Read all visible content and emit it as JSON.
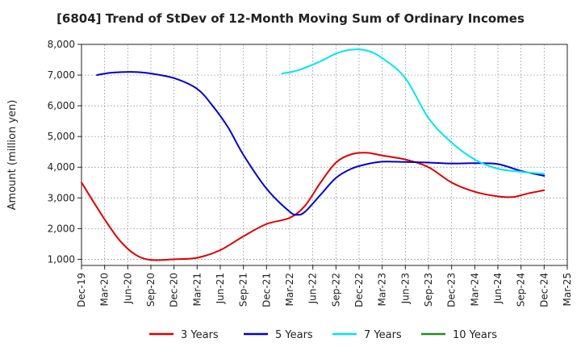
{
  "chart_data": {
    "type": "line",
    "title": "[6804]  Trend of StDev of 12-Month Moving Sum of Ordinary Incomes",
    "xlabel": "",
    "ylabel": "Amount (million yen)",
    "ylim": [
      800,
      8000
    ],
    "yticks": [
      1000,
      2000,
      3000,
      4000,
      5000,
      6000,
      7000,
      8000
    ],
    "ytick_labels": [
      "1,000",
      "2,000",
      "3,000",
      "4,000",
      "5,000",
      "6,000",
      "7,000",
      "8,000"
    ],
    "x_start": "Dec-19",
    "x_months_total": 63,
    "xtick_labels": [
      "Dec-19",
      "Mar-20",
      "Jun-20",
      "Sep-20",
      "Dec-20",
      "Mar-21",
      "Jun-21",
      "Sep-21",
      "Dec-21",
      "Mar-22",
      "Jun-22",
      "Sep-22",
      "Dec-22",
      "Mar-23",
      "Jun-23",
      "Sep-23",
      "Dec-23",
      "Mar-24",
      "Jun-24",
      "Sep-24",
      "Dec-24",
      "Mar-25"
    ],
    "grid": true,
    "legend_position": "bottom",
    "series": [
      {
        "name": "3 Years",
        "color": "#dd0000",
        "points": [
          [
            "Dec-19",
            3500
          ],
          [
            "Mar-20",
            2300
          ],
          [
            "May-20",
            1600
          ],
          [
            "Jul-20",
            1150
          ],
          [
            "Sep-20",
            980
          ],
          [
            "Dec-20",
            1000
          ],
          [
            "Mar-21",
            1050
          ],
          [
            "Jun-21",
            1300
          ],
          [
            "Sep-21",
            1750
          ],
          [
            "Dec-21",
            2150
          ],
          [
            "Mar-22",
            2350
          ],
          [
            "May-22",
            2750
          ],
          [
            "Jul-22",
            3500
          ],
          [
            "Sep-22",
            4150
          ],
          [
            "Nov-22",
            4420
          ],
          [
            "Jan-23",
            4470
          ],
          [
            "Mar-23",
            4380
          ],
          [
            "Jun-23",
            4250
          ],
          [
            "Sep-23",
            4000
          ],
          [
            "Dec-23",
            3500
          ],
          [
            "Mar-24",
            3200
          ],
          [
            "Jun-24",
            3050
          ],
          [
            "Aug-24",
            3030
          ],
          [
            "Oct-24",
            3150
          ],
          [
            "Dec-24",
            3250
          ]
        ]
      },
      {
        "name": "5 Years",
        "color": "#0000cc",
        "points": [
          [
            "Feb-20",
            7000
          ],
          [
            "Apr-20",
            7080
          ],
          [
            "Jul-20",
            7100
          ],
          [
            "Sep-20",
            7050
          ],
          [
            "Dec-20",
            6900
          ],
          [
            "Mar-21",
            6550
          ],
          [
            "May-21",
            6000
          ],
          [
            "Jul-21",
            5300
          ],
          [
            "Sep-21",
            4400
          ],
          [
            "Dec-21",
            3300
          ],
          [
            "Mar-22",
            2550
          ],
          [
            "Apr-22",
            2450
          ],
          [
            "May-22",
            2550
          ],
          [
            "Jul-22",
            3100
          ],
          [
            "Sep-22",
            3650
          ],
          [
            "Nov-22",
            3950
          ],
          [
            "Jan-23",
            4100
          ],
          [
            "Mar-23",
            4180
          ],
          [
            "Jun-23",
            4170
          ],
          [
            "Sep-23",
            4150
          ],
          [
            "Dec-23",
            4120
          ],
          [
            "Mar-24",
            4130
          ],
          [
            "Jun-24",
            4100
          ],
          [
            "Sep-24",
            3880
          ],
          [
            "Dec-24",
            3720
          ]
        ]
      },
      {
        "name": "7 Years",
        "color": "#00e5ee",
        "points": [
          [
            "Feb-22",
            7050
          ],
          [
            "Apr-22",
            7150
          ],
          [
            "Jul-22",
            7450
          ],
          [
            "Sep-22",
            7700
          ],
          [
            "Nov-22",
            7830
          ],
          [
            "Jan-23",
            7800
          ],
          [
            "Mar-23",
            7550
          ],
          [
            "Jun-23",
            6900
          ],
          [
            "Sep-23",
            5600
          ],
          [
            "Dec-23",
            4800
          ],
          [
            "Mar-24",
            4250
          ],
          [
            "Jun-24",
            3950
          ],
          [
            "Sep-24",
            3850
          ],
          [
            "Dec-24",
            3780
          ]
        ]
      },
      {
        "name": "10 Years",
        "color": "#228b22",
        "points": []
      }
    ]
  }
}
